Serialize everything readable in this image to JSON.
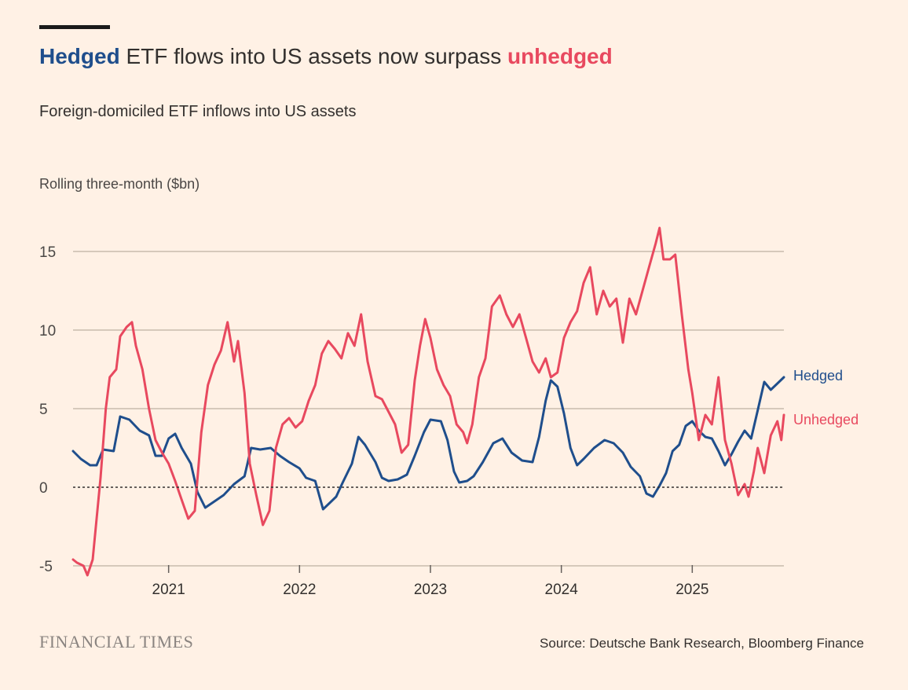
{
  "header": {
    "title_hedged": "Hedged",
    "title_middle": " ETF flows into US assets now surpass ",
    "title_unhedged": "unhedged",
    "subtitle": "Foreign-domiciled ETF inflows into US assets",
    "unit_label": "Rolling three-month ($bn)"
  },
  "footer": {
    "brand": "FINANCIAL TIMES",
    "source": "Source: Deutsche Bank Research, Bloomberg Finance"
  },
  "colors": {
    "background": "#fff1e5",
    "hedged": "#1f4e8c",
    "unhedged": "#e8495f",
    "gridline": "#d6c9bb",
    "zero_line": "#33302e"
  },
  "chart_data": {
    "type": "line",
    "title": "Hedged ETF flows into US assets now surpass unhedged",
    "subtitle": "Foreign-domiciled ETF inflows into US assets",
    "ylabel": "Rolling three-month ($bn)",
    "xlabel": "",
    "xlim": [
      2020.27,
      2025.7
    ],
    "ylim": [
      -5.5,
      17
    ],
    "yticks": [
      -5,
      0,
      5,
      10,
      15
    ],
    "xticks": [
      2021,
      2022,
      2023,
      2024,
      2025
    ],
    "grid": true,
    "zero_line": "dotted",
    "legend": "direct labels at line ends",
    "series": [
      {
        "name": "Hedged",
        "color": "#1f4e8c",
        "points": [
          [
            2020.27,
            2.3
          ],
          [
            2020.33,
            1.8
          ],
          [
            2020.4,
            1.4
          ],
          [
            2020.45,
            1.4
          ],
          [
            2020.5,
            2.4
          ],
          [
            2020.58,
            2.3
          ],
          [
            2020.63,
            4.5
          ],
          [
            2020.7,
            4.3
          ],
          [
            2020.78,
            3.6
          ],
          [
            2020.85,
            3.3
          ],
          [
            2020.9,
            2.0
          ],
          [
            2020.95,
            2.0
          ],
          [
            2021.0,
            3.1
          ],
          [
            2021.05,
            3.4
          ],
          [
            2021.1,
            2.5
          ],
          [
            2021.17,
            1.5
          ],
          [
            2021.22,
            -0.3
          ],
          [
            2021.28,
            -1.3
          ],
          [
            2021.35,
            -0.9
          ],
          [
            2021.42,
            -0.5
          ],
          [
            2021.5,
            0.2
          ],
          [
            2021.58,
            0.7
          ],
          [
            2021.63,
            2.5
          ],
          [
            2021.7,
            2.4
          ],
          [
            2021.78,
            2.5
          ],
          [
            2021.85,
            2.0
          ],
          [
            2021.92,
            1.6
          ],
          [
            2022.0,
            1.2
          ],
          [
            2022.05,
            0.6
          ],
          [
            2022.12,
            0.4
          ],
          [
            2022.18,
            -1.4
          ],
          [
            2022.23,
            -1.0
          ],
          [
            2022.28,
            -0.6
          ],
          [
            2022.33,
            0.3
          ],
          [
            2022.4,
            1.5
          ],
          [
            2022.45,
            3.2
          ],
          [
            2022.5,
            2.7
          ],
          [
            2022.58,
            1.6
          ],
          [
            2022.63,
            0.6
          ],
          [
            2022.68,
            0.4
          ],
          [
            2022.75,
            0.5
          ],
          [
            2022.82,
            0.8
          ],
          [
            2022.88,
            2.0
          ],
          [
            2022.95,
            3.5
          ],
          [
            2023.0,
            4.3
          ],
          [
            2023.08,
            4.2
          ],
          [
            2023.13,
            3.0
          ],
          [
            2023.18,
            1.0
          ],
          [
            2023.22,
            0.3
          ],
          [
            2023.28,
            0.4
          ],
          [
            2023.33,
            0.7
          ],
          [
            2023.4,
            1.6
          ],
          [
            2023.48,
            2.8
          ],
          [
            2023.55,
            3.1
          ],
          [
            2023.62,
            2.2
          ],
          [
            2023.7,
            1.7
          ],
          [
            2023.78,
            1.6
          ],
          [
            2023.83,
            3.2
          ],
          [
            2023.88,
            5.5
          ],
          [
            2023.92,
            6.8
          ],
          [
            2023.97,
            6.4
          ],
          [
            2024.02,
            4.7
          ],
          [
            2024.07,
            2.5
          ],
          [
            2024.12,
            1.4
          ],
          [
            2024.17,
            1.8
          ],
          [
            2024.25,
            2.5
          ],
          [
            2024.33,
            3.0
          ],
          [
            2024.4,
            2.8
          ],
          [
            2024.47,
            2.2
          ],
          [
            2024.53,
            1.3
          ],
          [
            2024.6,
            0.7
          ],
          [
            2024.65,
            -0.4
          ],
          [
            2024.7,
            -0.6
          ],
          [
            2024.75,
            0.1
          ],
          [
            2024.8,
            0.9
          ],
          [
            2024.85,
            2.3
          ],
          [
            2024.9,
            2.7
          ],
          [
            2024.95,
            3.9
          ],
          [
            2025.0,
            4.2
          ],
          [
            2025.05,
            3.6
          ],
          [
            2025.1,
            3.2
          ],
          [
            2025.15,
            3.1
          ],
          [
            2025.2,
            2.3
          ],
          [
            2025.25,
            1.4
          ],
          [
            2025.3,
            2.1
          ],
          [
            2025.35,
            2.9
          ],
          [
            2025.4,
            3.6
          ],
          [
            2025.45,
            3.1
          ],
          [
            2025.5,
            4.9
          ],
          [
            2025.55,
            6.7
          ],
          [
            2025.6,
            6.2
          ],
          [
            2025.65,
            6.6
          ],
          [
            2025.7,
            7.0
          ]
        ],
        "end_label": "Hedged"
      },
      {
        "name": "Unhedged",
        "color": "#e8495f",
        "points": [
          [
            2020.27,
            -4.6
          ],
          [
            2020.3,
            -4.8
          ],
          [
            2020.35,
            -5.0
          ],
          [
            2020.38,
            -5.6
          ],
          [
            2020.42,
            -4.6
          ],
          [
            2020.45,
            -2.0
          ],
          [
            2020.48,
            0.6
          ],
          [
            2020.52,
            5.0
          ],
          [
            2020.55,
            7.0
          ],
          [
            2020.6,
            7.5
          ],
          [
            2020.63,
            9.6
          ],
          [
            2020.68,
            10.2
          ],
          [
            2020.72,
            10.5
          ],
          [
            2020.75,
            9.0
          ],
          [
            2020.8,
            7.5
          ],
          [
            2020.85,
            5.0
          ],
          [
            2020.9,
            3.0
          ],
          [
            2020.95,
            2.2
          ],
          [
            2021.0,
            1.5
          ],
          [
            2021.05,
            0.4
          ],
          [
            2021.1,
            -0.8
          ],
          [
            2021.15,
            -2.0
          ],
          [
            2021.2,
            -1.5
          ],
          [
            2021.25,
            3.5
          ],
          [
            2021.3,
            6.5
          ],
          [
            2021.35,
            7.8
          ],
          [
            2021.4,
            8.7
          ],
          [
            2021.45,
            10.5
          ],
          [
            2021.5,
            8.0
          ],
          [
            2021.53,
            9.3
          ],
          [
            2021.58,
            6.0
          ],
          [
            2021.62,
            1.5
          ],
          [
            2021.67,
            -0.5
          ],
          [
            2021.72,
            -2.4
          ],
          [
            2021.77,
            -1.5
          ],
          [
            2021.82,
            2.5
          ],
          [
            2021.87,
            4.0
          ],
          [
            2021.92,
            4.4
          ],
          [
            2021.97,
            3.8
          ],
          [
            2022.02,
            4.2
          ],
          [
            2022.07,
            5.5
          ],
          [
            2022.12,
            6.5
          ],
          [
            2022.17,
            8.5
          ],
          [
            2022.22,
            9.3
          ],
          [
            2022.27,
            8.8
          ],
          [
            2022.32,
            8.2
          ],
          [
            2022.37,
            9.8
          ],
          [
            2022.42,
            9.0
          ],
          [
            2022.47,
            11.0
          ],
          [
            2022.52,
            8.0
          ],
          [
            2022.58,
            5.8
          ],
          [
            2022.63,
            5.6
          ],
          [
            2022.68,
            4.8
          ],
          [
            2022.73,
            4.0
          ],
          [
            2022.78,
            2.2
          ],
          [
            2022.83,
            2.7
          ],
          [
            2022.88,
            6.8
          ],
          [
            2022.92,
            9.0
          ],
          [
            2022.96,
            10.7
          ],
          [
            2023.0,
            9.5
          ],
          [
            2023.05,
            7.5
          ],
          [
            2023.1,
            6.5
          ],
          [
            2023.15,
            5.8
          ],
          [
            2023.2,
            4.0
          ],
          [
            2023.25,
            3.5
          ],
          [
            2023.28,
            2.8
          ],
          [
            2023.32,
            4.0
          ],
          [
            2023.37,
            7.0
          ],
          [
            2023.42,
            8.2
          ],
          [
            2023.47,
            11.5
          ],
          [
            2023.53,
            12.2
          ],
          [
            2023.58,
            11.0
          ],
          [
            2023.63,
            10.2
          ],
          [
            2023.68,
            11.0
          ],
          [
            2023.73,
            9.5
          ],
          [
            2023.78,
            8.0
          ],
          [
            2023.83,
            7.3
          ],
          [
            2023.88,
            8.2
          ],
          [
            2023.92,
            7.0
          ],
          [
            2023.97,
            7.3
          ],
          [
            2024.02,
            9.5
          ],
          [
            2024.07,
            10.5
          ],
          [
            2024.12,
            11.2
          ],
          [
            2024.17,
            13.0
          ],
          [
            2024.22,
            14.0
          ],
          [
            2024.27,
            11.0
          ],
          [
            2024.32,
            12.5
          ],
          [
            2024.37,
            11.5
          ],
          [
            2024.42,
            12.0
          ],
          [
            2024.47,
            9.2
          ],
          [
            2024.52,
            12.0
          ],
          [
            2024.57,
            11.0
          ],
          [
            2024.62,
            12.5
          ],
          [
            2024.67,
            14.0
          ],
          [
            2024.72,
            15.5
          ],
          [
            2024.75,
            16.5
          ],
          [
            2024.78,
            14.5
          ],
          [
            2024.83,
            14.5
          ],
          [
            2024.87,
            14.8
          ],
          [
            2024.92,
            11.0
          ],
          [
            2024.97,
            7.5
          ],
          [
            2025.0,
            6.0
          ],
          [
            2025.05,
            3.0
          ],
          [
            2025.1,
            4.6
          ],
          [
            2025.15,
            4.0
          ],
          [
            2025.2,
            7.0
          ],
          [
            2025.25,
            3.0
          ],
          [
            2025.3,
            1.5
          ],
          [
            2025.35,
            -0.5
          ],
          [
            2025.4,
            0.2
          ],
          [
            2025.43,
            -0.6
          ],
          [
            2025.47,
            1.0
          ],
          [
            2025.5,
            2.5
          ],
          [
            2025.55,
            0.9
          ],
          [
            2025.6,
            3.3
          ],
          [
            2025.65,
            4.2
          ],
          [
            2025.68,
            3.0
          ],
          [
            2025.7,
            4.6
          ]
        ],
        "end_label": "Unhedged"
      }
    ]
  }
}
